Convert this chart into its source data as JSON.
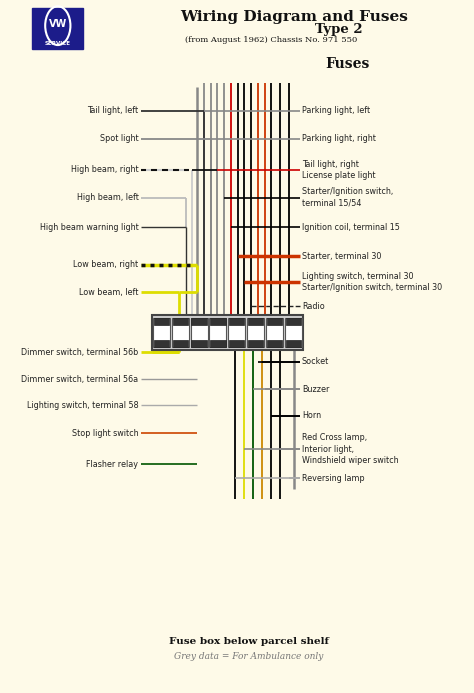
{
  "bg_color": "#FEFAE8",
  "title_main": "Wiring Diagram and Fuses",
  "title_type": "Type 2",
  "title_sub": "(from August 1962) Chassis No. 971 550",
  "fuses_label": "Fuses",
  "footer1": "Fuse box below parcel shelf",
  "footer2": "Grey data = For Ambulance only",
  "left_labels": [
    [
      "Tail light, left",
      0.84
    ],
    [
      "Spot light",
      0.8
    ],
    [
      "High beam, right",
      0.755
    ],
    [
      "High beam, left",
      0.715
    ],
    [
      "High beam warning light",
      0.672
    ],
    [
      "Low beam, right",
      0.618
    ],
    [
      "Low beam, left",
      0.578
    ],
    [
      "Dimmer switch, terminal 56b",
      0.492
    ],
    [
      "Dimmer switch, terminal 56a",
      0.453
    ],
    [
      "Lighting switch, terminal 58",
      0.415
    ],
    [
      "Stop light switch",
      0.375
    ],
    [
      "Flasher relay",
      0.33
    ]
  ],
  "right_labels": [
    [
      "Parking light, left",
      0.84
    ],
    [
      "Parking light, right",
      0.8
    ],
    [
      "Tail light, right\nLicense plate light",
      0.755
    ],
    [
      "Starter/Ignition switch,\nterminal 15/54",
      0.715
    ],
    [
      "Ignition coil, terminal 15",
      0.672
    ],
    [
      "Starter, terminal 30",
      0.63
    ],
    [
      "Lighting switch, terminal 30\nStarter/Ignition switch, terminal 30",
      0.593
    ],
    [
      "Radio",
      0.558
    ],
    [
      "Socket",
      0.478
    ],
    [
      "Buzzer",
      0.438
    ],
    [
      "Horn",
      0.4
    ],
    [
      "Red Cross lamp,\nInterior light,\nWindshield wiper switch",
      0.352
    ],
    [
      "Reversing lamp",
      0.31
    ]
  ]
}
